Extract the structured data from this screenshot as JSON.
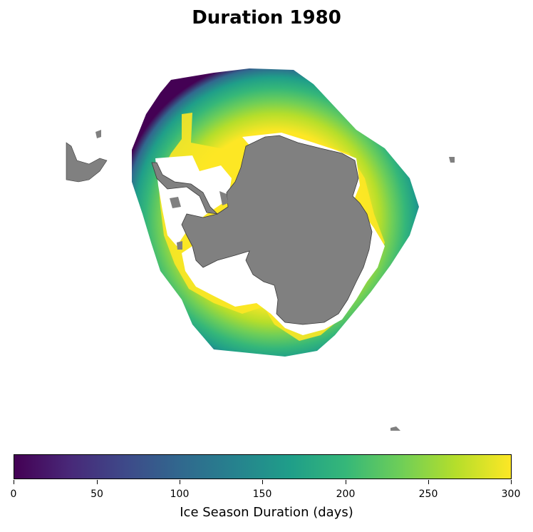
{
  "title": "Duration 1980",
  "colorbar": {
    "label": "Ice Season Duration (days)",
    "min": 0,
    "max": 300,
    "ticks": [
      "0",
      "50",
      "100",
      "150",
      "200",
      "250",
      "300"
    ],
    "colormap": "viridis",
    "stops": [
      "#440154",
      "#482878",
      "#3e4989",
      "#31688e",
      "#26828e",
      "#1f9e89",
      "#35b779",
      "#6ece58",
      "#b5de2b",
      "#fde725"
    ]
  },
  "colors": {
    "land": "#808080",
    "no_ice": "#ffffff",
    "high_duration": "#fde725",
    "low_duration": "#440154"
  }
}
